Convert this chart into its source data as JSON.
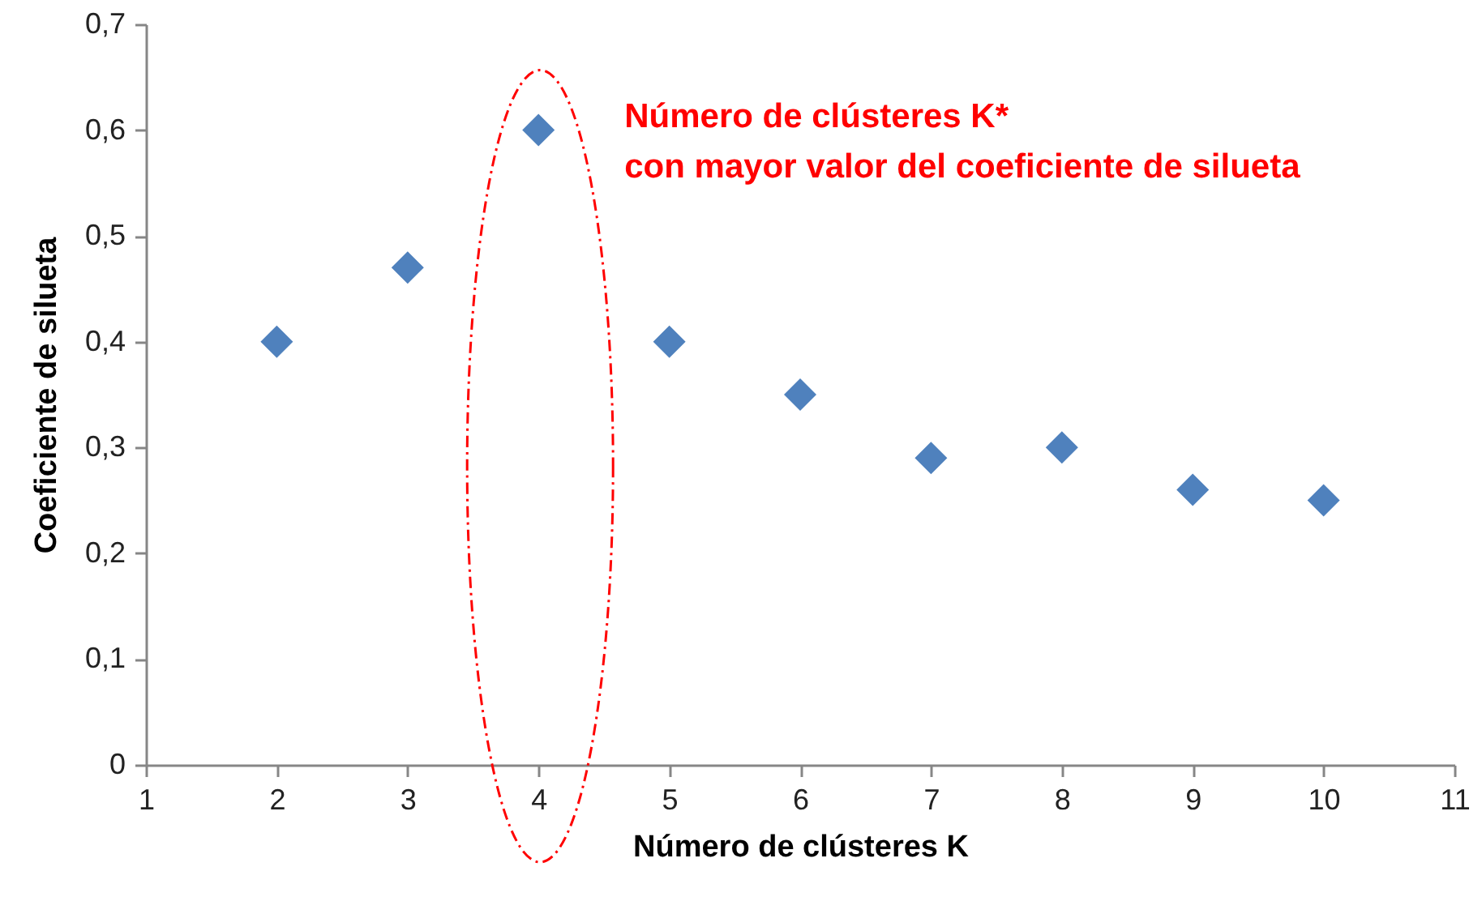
{
  "chart_data": {
    "type": "scatter",
    "xlabel": "Número de clústeres K",
    "ylabel": "Coeficiente de silueta",
    "annotations": [
      {
        "text": "Número de clústeres K*\ncon mayor valor del coeficiente de silueta",
        "x": 4,
        "y": 0.6
      }
    ],
    "x": [
      2,
      3,
      4,
      5,
      6,
      7,
      8,
      9,
      10
    ],
    "series": [
      {
        "color": "#4f81bd",
        "values": [
          0.4,
          0.47,
          0.6,
          0.4,
          0.35,
          0.29,
          0.3,
          0.26,
          0.25
        ]
      }
    ],
    "xlim": [
      1,
      11
    ],
    "xticks": [
      1,
      2,
      3,
      4,
      5,
      6,
      7,
      8,
      9,
      10,
      11
    ],
    "ylim": [
      0,
      0.7
    ],
    "yticks": [
      0,
      {
        "value": 0.1,
        "label": "0,1"
      },
      {
        "value": 0.2,
        "label": "0,2"
      },
      {
        "value": 0.3,
        "label": "0,3"
      },
      {
        "value": 0.4,
        "label": "0,4"
      },
      {
        "value": 0.5,
        "label": "0,5"
      },
      {
        "value": 0.6,
        "label": "0,6"
      },
      {
        "value": 0.7,
        "label": "0,7"
      }
    ],
    "grid": false,
    "legend": false,
    "marker": "diamond"
  }
}
